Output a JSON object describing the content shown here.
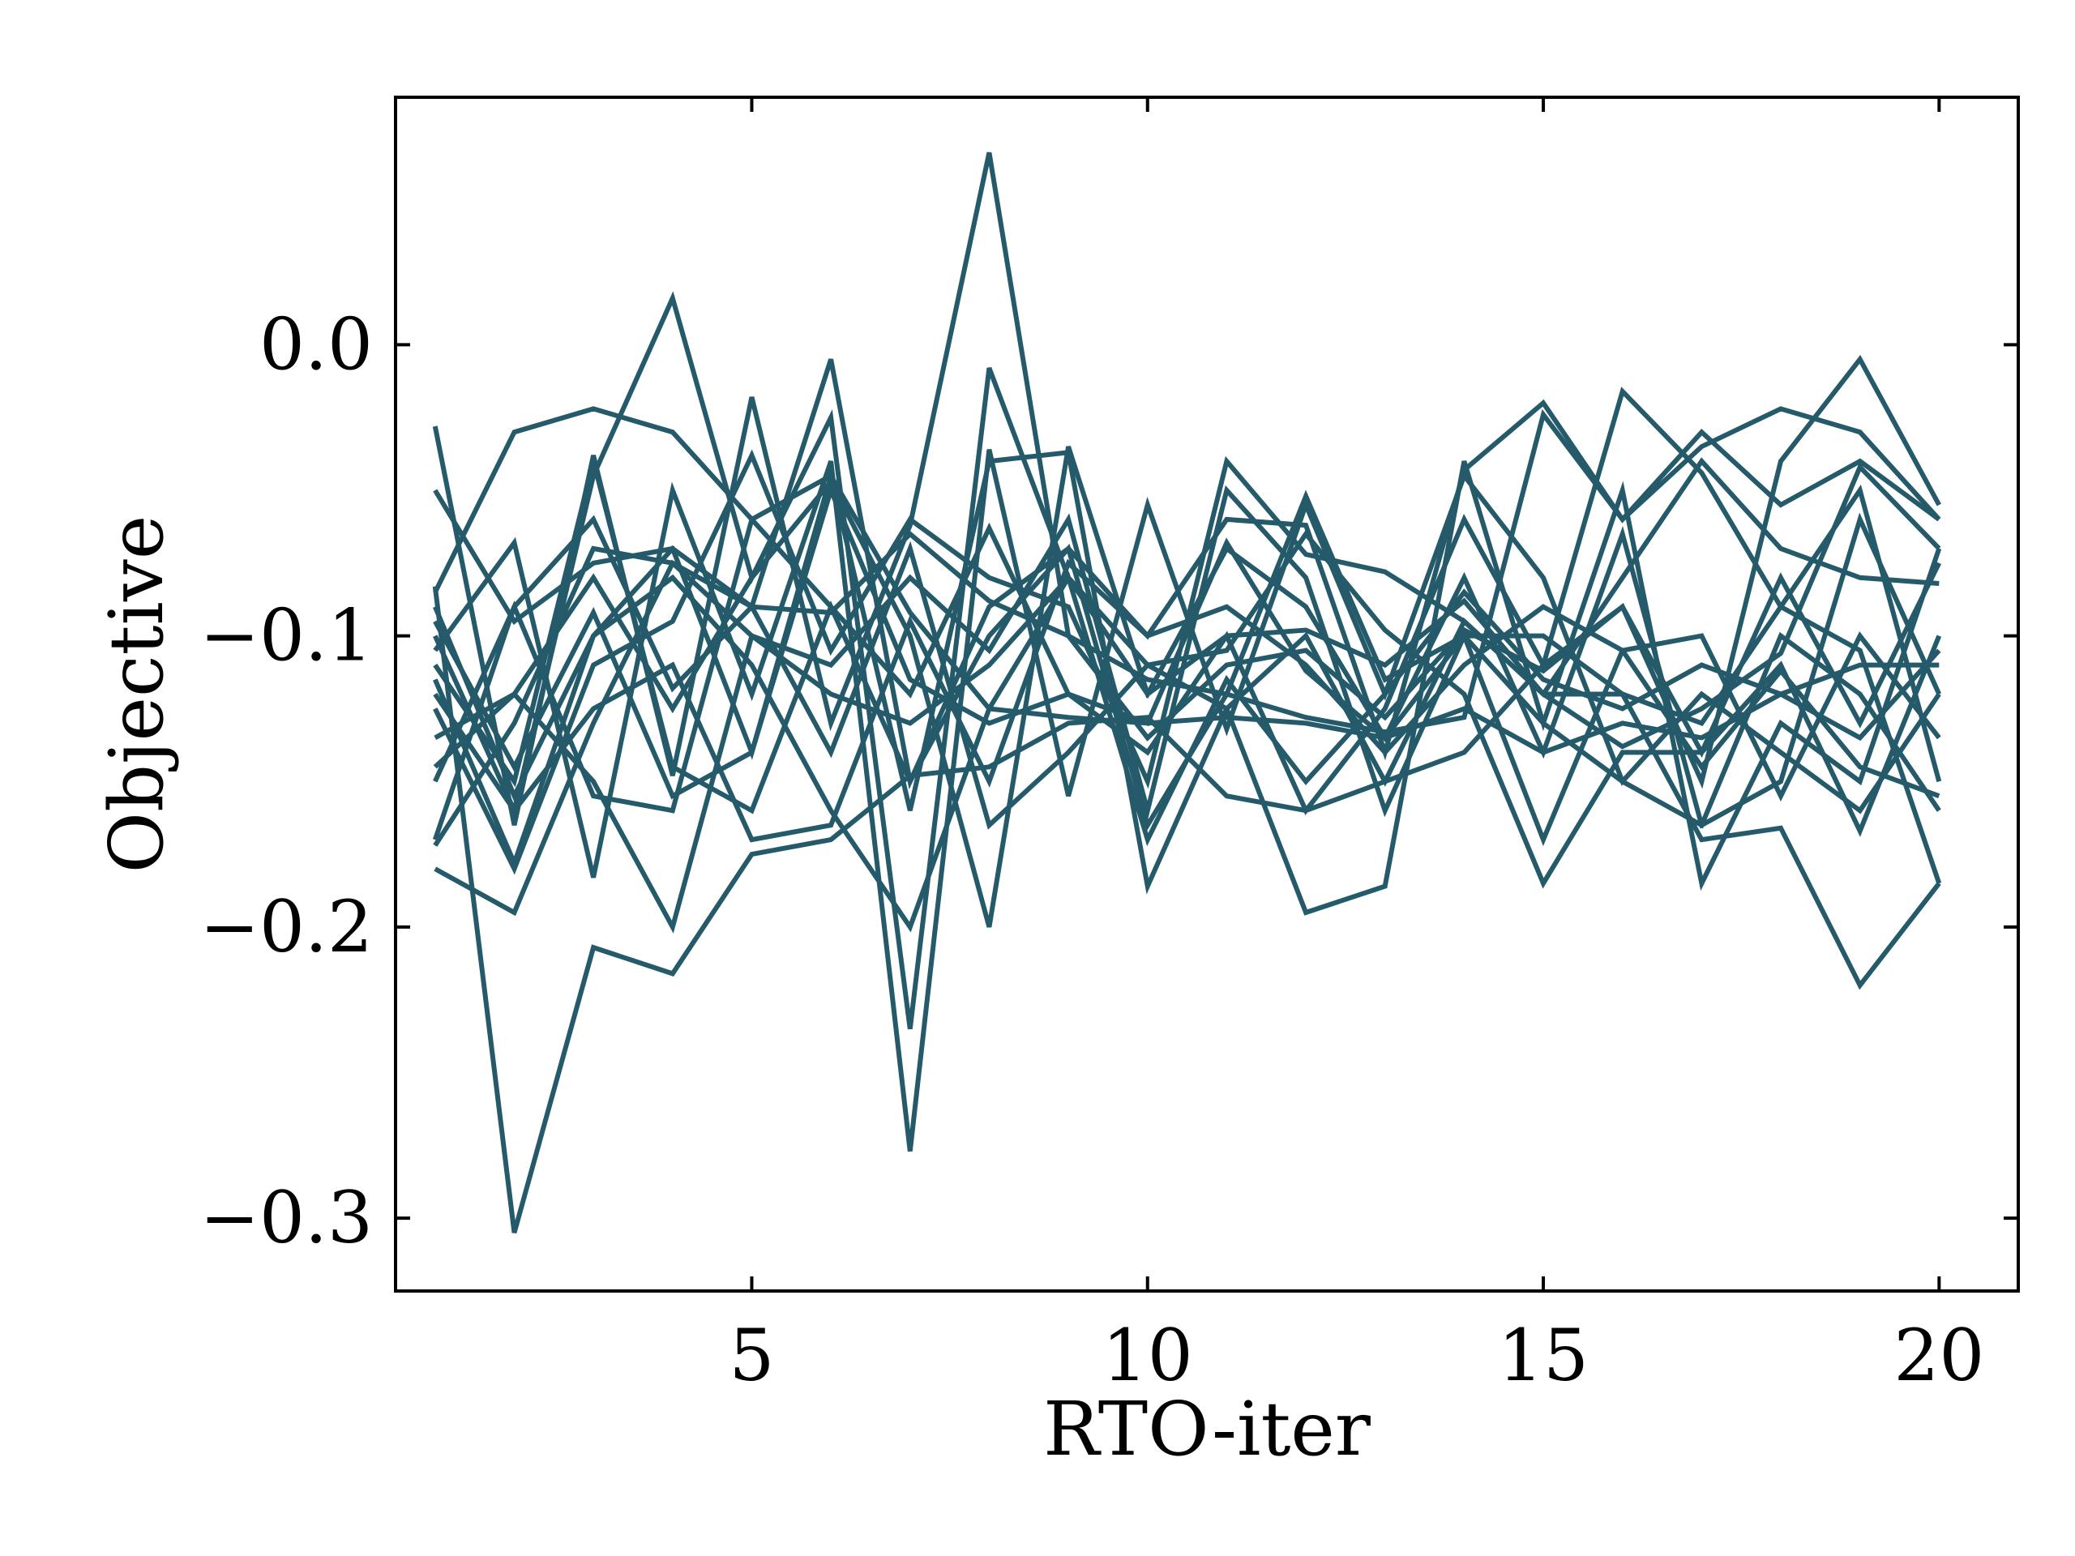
{
  "chart_data": {
    "type": "line",
    "xlabel": "RTO-iter",
    "ylabel": "Objective",
    "xlim": [
      0.5,
      21
    ],
    "ylim": [
      -0.325,
      0.085
    ],
    "xticks": [
      5,
      10,
      15,
      20
    ],
    "xtick_labels": [
      "5",
      "10",
      "15",
      "20"
    ],
    "yticks": [
      0.0,
      -0.1,
      -0.2,
      -0.3
    ],
    "ytick_labels": [
      "0.0",
      "−0.1",
      "−0.2",
      "−0.3"
    ],
    "grid": false,
    "legend": false,
    "line_color": "#245a69",
    "x": [
      1,
      2,
      3,
      4,
      5,
      6,
      7,
      8,
      9,
      10,
      11,
      12,
      13,
      14,
      15,
      16,
      17,
      18,
      19,
      20
    ],
    "series": [
      {
        "values": [
          -0.028,
          -0.165,
          -0.038,
          -0.148,
          -0.018,
          -0.13,
          -0.062,
          0.066,
          -0.1,
          -0.135,
          -0.11,
          -0.105,
          -0.128,
          -0.098,
          -0.112,
          -0.09,
          -0.15,
          -0.04,
          -0.005,
          -0.055
        ]
      },
      {
        "values": [
          -0.085,
          -0.03,
          -0.022,
          -0.03,
          -0.06,
          -0.045,
          -0.092,
          -0.125,
          -0.128,
          -0.13,
          -0.128,
          -0.13,
          -0.135,
          -0.125,
          -0.14,
          -0.13,
          -0.135,
          -0.12,
          -0.11,
          -0.11
        ]
      },
      {
        "values": [
          -0.18,
          -0.195,
          -0.13,
          -0.075,
          -0.09,
          -0.092,
          -0.065,
          -0.088,
          -0.1,
          -0.115,
          -0.12,
          -0.128,
          -0.133,
          -0.128,
          -0.024,
          -0.06,
          -0.035,
          -0.022,
          -0.03,
          -0.06
        ]
      },
      {
        "values": [
          -0.083,
          -0.305,
          -0.207,
          -0.216,
          -0.175,
          -0.17,
          -0.148,
          -0.145,
          -0.13,
          -0.128,
          -0.155,
          -0.16,
          -0.15,
          -0.14,
          -0.11,
          -0.016,
          -0.044,
          -0.09,
          -0.105,
          -0.185
        ]
      },
      {
        "values": [
          -0.1,
          -0.16,
          -0.045,
          0.016,
          -0.08,
          -0.025,
          -0.235,
          -0.008,
          -0.08,
          -0.11,
          -0.125,
          -0.195,
          -0.186,
          -0.04,
          -0.13,
          -0.05,
          -0.185,
          -0.13,
          -0.15,
          -0.07
        ]
      },
      {
        "values": [
          -0.05,
          -0.095,
          -0.075,
          -0.07,
          -0.14,
          -0.045,
          -0.16,
          -0.04,
          -0.037,
          -0.186,
          -0.125,
          -0.1,
          -0.15,
          -0.095,
          -0.12,
          -0.12,
          -0.17,
          -0.166,
          -0.22,
          -0.185
        ]
      },
      {
        "values": [
          -0.105,
          -0.068,
          -0.183,
          -0.05,
          -0.12,
          -0.04,
          -0.277,
          -0.036,
          -0.155,
          -0.055,
          -0.132,
          -0.055,
          -0.12,
          -0.045,
          -0.08,
          -0.15,
          -0.12,
          -0.14,
          -0.16,
          -0.12
        ]
      },
      {
        "values": [
          -0.115,
          -0.178,
          -0.1,
          -0.07,
          -0.09,
          -0.005,
          -0.15,
          -0.09,
          -0.07,
          -0.1,
          -0.06,
          -0.062,
          -0.14,
          -0.043,
          -0.02,
          -0.06,
          -0.03,
          -0.055,
          -0.04,
          -0.06
        ]
      },
      {
        "values": [
          -0.135,
          -0.12,
          -0.08,
          -0.125,
          -0.08,
          -0.047,
          -0.1,
          -0.2,
          -0.035,
          -0.12,
          -0.1,
          -0.098,
          -0.11,
          -0.088,
          -0.12,
          -0.138,
          -0.125,
          -0.106,
          -0.042,
          -0.07
        ]
      },
      {
        "values": [
          -0.15,
          -0.09,
          -0.155,
          -0.16,
          -0.06,
          -0.09,
          -0.12,
          -0.063,
          -0.12,
          -0.13,
          -0.068,
          -0.112,
          -0.135,
          -0.08,
          -0.14,
          -0.065,
          -0.165,
          -0.15,
          -0.06,
          -0.12
        ]
      },
      {
        "values": [
          -0.17,
          -0.09,
          -0.06,
          -0.118,
          -0.09,
          -0.14,
          -0.07,
          -0.165,
          -0.14,
          -0.11,
          -0.105,
          -0.065,
          -0.098,
          -0.12,
          -0.185,
          -0.14,
          -0.14,
          -0.11,
          -0.167,
          -0.1
        ]
      },
      {
        "values": [
          -0.11,
          -0.15,
          -0.04,
          -0.145,
          -0.16,
          -0.09,
          -0.15,
          -0.1,
          -0.07,
          -0.165,
          -0.12,
          -0.052,
          -0.115,
          -0.1,
          -0.17,
          -0.105,
          -0.1,
          -0.155,
          -0.1,
          -0.135
        ]
      },
      {
        "values": [
          -0.095,
          -0.145,
          -0.092,
          -0.155,
          -0.14,
          -0.05,
          -0.115,
          -0.13,
          -0.12,
          -0.14,
          -0.1,
          -0.16,
          -0.125,
          -0.06,
          -0.11,
          -0.09,
          -0.14,
          -0.08,
          -0.13,
          -0.075
        ]
      },
      {
        "values": [
          -0.125,
          -0.18,
          -0.11,
          -0.095,
          -0.038,
          -0.105,
          -0.06,
          -0.08,
          -0.09,
          -0.15,
          -0.04,
          -0.072,
          -0.078,
          -0.095,
          -0.12,
          -0.08,
          -0.04,
          -0.07,
          -0.08,
          -0.082
        ]
      },
      {
        "values": [
          -0.145,
          -0.12,
          -0.15,
          -0.2,
          -0.1,
          -0.12,
          -0.13,
          -0.11,
          -0.08,
          -0.12,
          -0.07,
          -0.09,
          -0.135,
          -0.1,
          -0.1,
          -0.12,
          -0.13,
          -0.09,
          -0.05,
          -0.15
        ]
      },
      {
        "values": [
          -0.172,
          -0.13,
          -0.07,
          -0.075,
          -0.1,
          -0.11,
          -0.08,
          -0.105,
          -0.06,
          -0.16,
          -0.05,
          -0.08,
          -0.16,
          -0.1,
          -0.13,
          -0.15,
          -0.165,
          -0.1,
          -0.12,
          -0.16
        ]
      },
      {
        "values": [
          -0.12,
          -0.16,
          -0.125,
          -0.11,
          -0.17,
          -0.165,
          -0.095,
          -0.15,
          -0.075,
          -0.1,
          -0.09,
          -0.11,
          -0.14,
          -0.11,
          -0.09,
          -0.105,
          -0.145,
          -0.112,
          -0.145,
          -0.155
        ]
      },
      {
        "values": [
          -0.09,
          -0.155,
          -0.1,
          -0.08,
          -0.11,
          -0.16,
          -0.2,
          -0.125,
          -0.08,
          -0.17,
          -0.115,
          -0.15,
          -0.12,
          -0.085,
          -0.115,
          -0.125,
          -0.11,
          -0.12,
          -0.135,
          -0.105
        ]
      }
    ]
  }
}
